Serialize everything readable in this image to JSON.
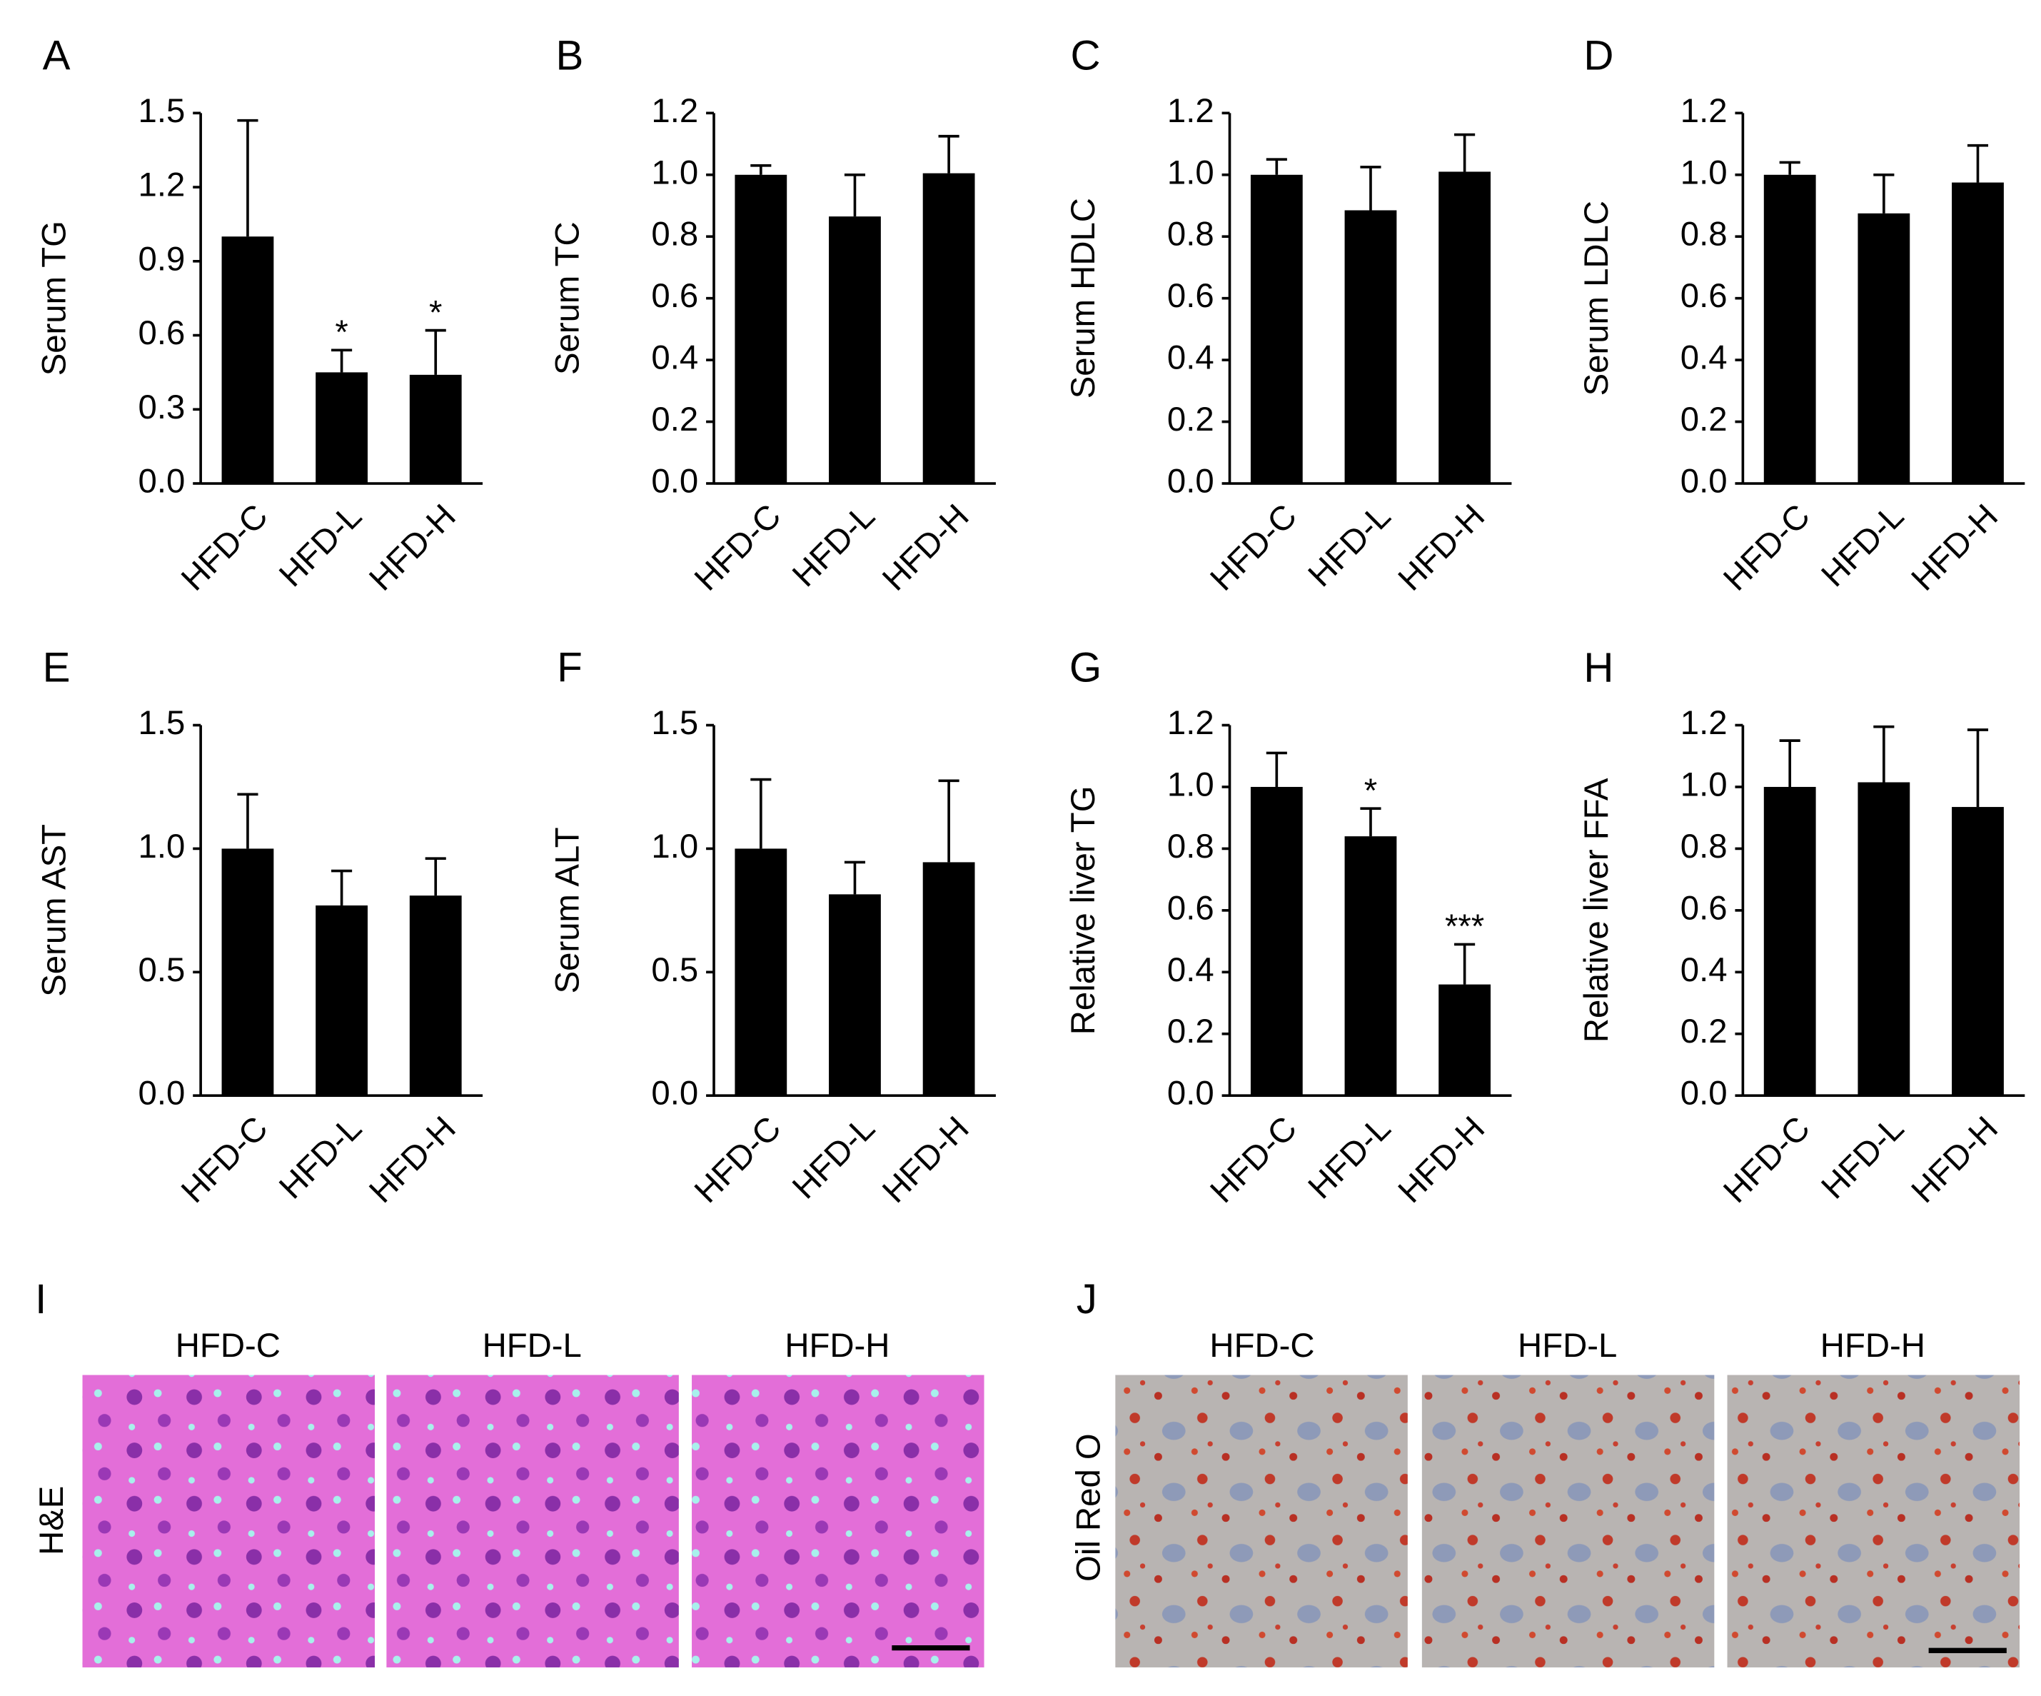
{
  "chart_data": [
    {
      "type": "bar",
      "panel": "A",
      "ylabel": "Serum TG",
      "categories": [
        "HFD-C",
        "HFD-L",
        "HFD-H"
      ],
      "values": [
        1.0,
        0.45,
        0.44
      ],
      "errors": [
        0.47,
        0.09,
        0.18
      ],
      "significance": [
        null,
        "*",
        "*"
      ],
      "color": "#000000",
      "ylim": [
        0,
        1.5
      ],
      "yticks": [
        {
          "value": 0,
          "label": "0.0"
        },
        0.3,
        0.6,
        0.9,
        1.2,
        1.5
      ]
    },
    {
      "type": "bar",
      "panel": "B",
      "ylabel": "Serum TC",
      "categories": [
        "HFD-C",
        "HFD-L",
        "HFD-H"
      ],
      "values": [
        1.0,
        0.865,
        1.005
      ],
      "errors": [
        0.03,
        0.135,
        0.12
      ],
      "color": "#000000",
      "ylim": [
        0,
        1.2
      ],
      "yticks": [
        {
          "value": 0,
          "label": "0.0"
        },
        0.2,
        0.4,
        0.6,
        0.8,
        {
          "value": 1,
          "label": "1.0"
        },
        1.2
      ]
    },
    {
      "type": "bar",
      "panel": "C",
      "ylabel": "Serum HDLC",
      "categories": [
        "HFD-C",
        "HFD-L",
        "HFD-H"
      ],
      "values": [
        1.0,
        0.885,
        1.01
      ],
      "errors": [
        0.05,
        0.14,
        0.12
      ],
      "color": "#000000",
      "ylim": [
        0,
        1.2
      ],
      "yticks": [
        {
          "value": 0,
          "label": "0.0"
        },
        0.2,
        0.4,
        0.6,
        0.8,
        {
          "value": 1,
          "label": "1.0"
        },
        1.2
      ]
    },
    {
      "type": "bar",
      "panel": "D",
      "ylabel": "Serum LDLC",
      "categories": [
        "HFD-C",
        "HFD-L",
        "HFD-H"
      ],
      "values": [
        1.0,
        0.875,
        0.975
      ],
      "errors": [
        0.04,
        0.125,
        0.12
      ],
      "color": "#000000",
      "ylim": [
        0,
        1.2
      ],
      "yticks": [
        {
          "value": 0,
          "label": "0.0"
        },
        0.2,
        0.4,
        0.6,
        0.8,
        {
          "value": 1,
          "label": "1.0"
        },
        1.2
      ]
    },
    {
      "type": "bar",
      "panel": "E",
      "ylabel": "Serum AST",
      "categories": [
        "HFD-C",
        "HFD-L",
        "HFD-H"
      ],
      "values": [
        1.0,
        0.77,
        0.81
      ],
      "errors": [
        0.22,
        0.14,
        0.15
      ],
      "color": "#000000",
      "ylim": [
        0,
        1.5
      ],
      "yticks": [
        {
          "value": 0,
          "label": "0.0"
        },
        0.5,
        {
          "value": 1,
          "label": "1.0"
        },
        1.5
      ]
    },
    {
      "type": "bar",
      "panel": "F",
      "ylabel": "Serum ALT",
      "categories": [
        "HFD-C",
        "HFD-L",
        "HFD-H"
      ],
      "values": [
        1.0,
        0.815,
        0.945
      ],
      "errors": [
        0.28,
        0.13,
        0.33
      ],
      "color": "#000000",
      "ylim": [
        0,
        1.5
      ],
      "yticks": [
        {
          "value": 0,
          "label": "0.0"
        },
        0.5,
        {
          "value": 1,
          "label": "1.0"
        },
        1.5
      ]
    },
    {
      "type": "bar",
      "panel": "G",
      "ylabel": "Relative liver TG",
      "categories": [
        "HFD-C",
        "HFD-L",
        "HFD-H"
      ],
      "values": [
        1.0,
        0.84,
        0.36
      ],
      "errors": [
        0.11,
        0.09,
        0.13
      ],
      "significance": [
        null,
        "*",
        "***"
      ],
      "color": "#000000",
      "ylim": [
        0,
        1.2
      ],
      "yticks": [
        {
          "value": 0,
          "label": "0.0"
        },
        0.2,
        0.4,
        0.6,
        0.8,
        {
          "value": 1,
          "label": "1.0"
        },
        1.2
      ]
    },
    {
      "type": "bar",
      "panel": "H",
      "ylabel": "Relative liver FFA",
      "categories": [
        "HFD-C",
        "HFD-L",
        "HFD-H"
      ],
      "values": [
        1.0,
        1.015,
        0.935
      ],
      "errors": [
        0.15,
        0.18,
        0.25
      ],
      "color": "#000000",
      "ylim": [
        0,
        1.2
      ],
      "yticks": [
        {
          "value": 0,
          "label": "0.0"
        },
        0.2,
        0.4,
        0.6,
        0.8,
        {
          "value": 1,
          "label": "1.0"
        },
        1.2
      ]
    }
  ],
  "image_panels": [
    {
      "panel": "I",
      "row_label": "H&E",
      "columns": [
        "HFD-C",
        "HFD-L",
        "HFD-H"
      ]
    },
    {
      "panel": "J",
      "row_label": "Oil Red O",
      "columns": [
        "HFD-C",
        "HFD-L",
        "HFD-H"
      ]
    }
  ]
}
